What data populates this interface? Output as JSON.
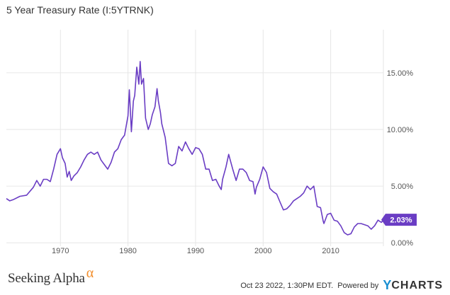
{
  "header": {
    "title": "5 Year Treasury Rate (I:5YTRNK)"
  },
  "footer": {
    "brand_text": "Seeking Alpha",
    "brand_alpha": "α",
    "timestamp": "Oct 23 2022, 1:30PM EDT.",
    "powered_by": "Powered by",
    "ycharts_y": "Y",
    "ycharts_text": "CHARTS"
  },
  "colors": {
    "line": "#6a3dc4",
    "grid": "#e6e6e6",
    "badge_bg": "#6a3dc4",
    "badge_text": "#ffffff",
    "alpha": "#f28c28",
    "ycharts_y": "#1a8fd1"
  },
  "chart_data": {
    "type": "line",
    "title": "5 Year Treasury Rate (I:5YTRNK)",
    "xlabel": "",
    "ylabel": "",
    "xlim": [
      1962,
      2017.8
    ],
    "ylim": [
      -0.3,
      18.8
    ],
    "x_ticks": [
      1970,
      1980,
      1990,
      2000,
      2010
    ],
    "x_tick_labels": [
      "1970",
      "1980",
      "1990",
      "2000",
      "2010"
    ],
    "y_ticks": [
      0,
      5,
      10,
      15
    ],
    "y_tick_labels": [
      "0.00%",
      "5.00%",
      "10.00%",
      "15.00%"
    ],
    "grid": true,
    "last_value_label": "2.03%",
    "series": [
      {
        "x": [
          1962.0,
          1962.5,
          1963.0,
          1964.0,
          1965.0,
          1966.0,
          1966.5,
          1967.0,
          1967.5,
          1968.0,
          1968.5,
          1969.0,
          1969.5,
          1970.0,
          1970.3,
          1970.7,
          1971.0,
          1971.3,
          1971.6,
          1972.0,
          1972.5,
          1973.0,
          1973.5,
          1974.0,
          1974.5,
          1975.0,
          1975.5,
          1976.0,
          1976.5,
          1977.0,
          1977.5,
          1978.0,
          1978.5,
          1979.0,
          1979.5,
          1980.0,
          1980.2,
          1980.5,
          1980.8,
          1981.0,
          1981.3,
          1981.6,
          1981.8,
          1982.0,
          1982.3,
          1982.6,
          1983.0,
          1983.3,
          1983.6,
          1984.0,
          1984.3,
          1984.5,
          1984.8,
          1985.0,
          1985.5,
          1986.0,
          1986.5,
          1987.0,
          1987.5,
          1988.0,
          1988.5,
          1989.0,
          1989.5,
          1990.0,
          1990.5,
          1991.0,
          1991.5,
          1992.0,
          1992.5,
          1993.0,
          1993.5,
          1993.8,
          1994.0,
          1994.5,
          1994.9,
          1995.5,
          1996.0,
          1996.5,
          1997.0,
          1997.5,
          1998.0,
          1998.5,
          1998.8,
          1999.0,
          1999.5,
          2000.0,
          2000.5,
          2001.0,
          2001.5,
          2002.0,
          2002.5,
          2003.0,
          2003.5,
          2004.0,
          2004.5,
          2005.0,
          2005.5,
          2006.0,
          2006.5,
          2007.0,
          2007.5,
          2008.0,
          2008.5,
          2008.9,
          2009.0,
          2009.5,
          2010.0,
          2010.5,
          2011.0,
          2011.5,
          2012.0,
          2012.5,
          2013.0,
          2013.5,
          2014.0,
          2014.5,
          2015.0,
          2015.5,
          2016.0,
          2016.5,
          2017.0,
          2017.5,
          2017.8
        ],
        "values": [
          3.9,
          3.7,
          3.8,
          4.1,
          4.2,
          4.9,
          5.5,
          5.0,
          5.6,
          5.6,
          5.4,
          6.5,
          7.8,
          8.3,
          7.5,
          7.0,
          5.8,
          6.3,
          5.5,
          5.9,
          6.2,
          6.7,
          7.3,
          7.8,
          8.0,
          7.8,
          8.0,
          7.3,
          6.9,
          6.5,
          7.1,
          8.0,
          8.3,
          9.1,
          9.5,
          11.2,
          13.5,
          9.8,
          12.5,
          13.0,
          15.5,
          14.0,
          16.0,
          14.0,
          14.5,
          11.0,
          10.0,
          10.5,
          11.3,
          12.0,
          13.6,
          12.5,
          11.5,
          10.5,
          9.3,
          7.0,
          6.8,
          7.0,
          8.5,
          8.1,
          8.9,
          8.3,
          7.8,
          8.4,
          8.3,
          7.8,
          6.5,
          6.5,
          5.5,
          5.6,
          5.0,
          4.7,
          5.6,
          6.7,
          7.8,
          6.5,
          5.5,
          6.5,
          6.5,
          6.2,
          5.5,
          5.4,
          4.3,
          4.9,
          5.6,
          6.7,
          6.2,
          4.8,
          4.5,
          4.3,
          3.6,
          2.9,
          3.0,
          3.3,
          3.7,
          3.9,
          4.1,
          4.4,
          5.0,
          4.7,
          5.0,
          3.2,
          3.1,
          1.9,
          1.7,
          2.5,
          2.6,
          2.0,
          1.9,
          1.5,
          0.9,
          0.7,
          0.8,
          1.4,
          1.7,
          1.7,
          1.6,
          1.5,
          1.2,
          1.5,
          2.0,
          1.8,
          2.03
        ]
      }
    ]
  }
}
